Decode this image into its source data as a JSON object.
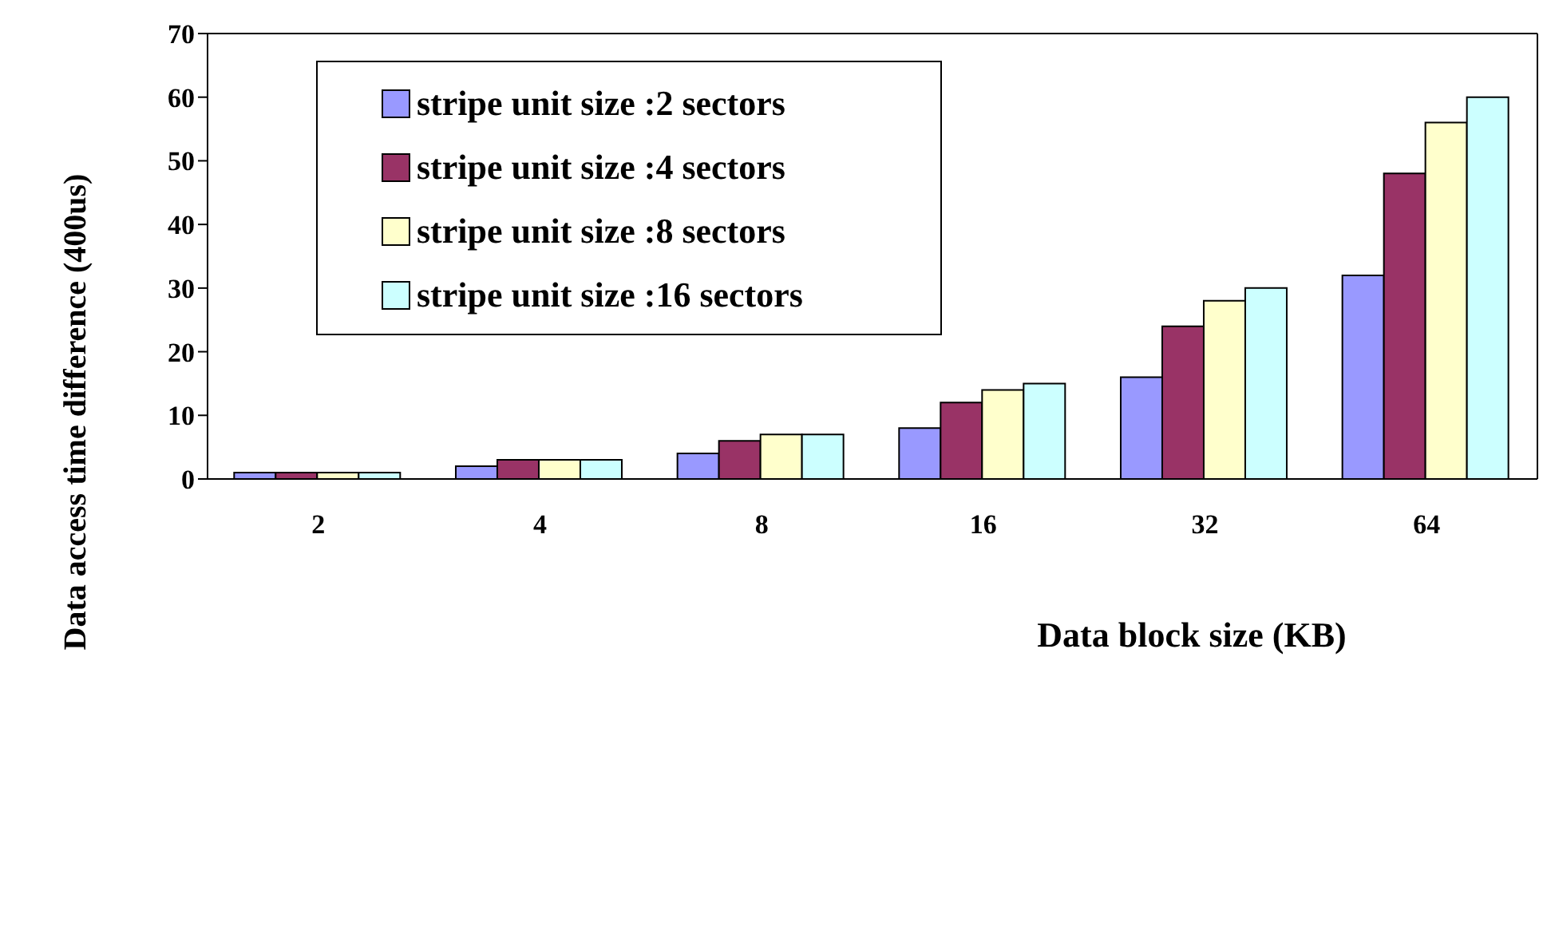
{
  "chart_data": {
    "type": "bar",
    "xlabel": "Data block size (KB)",
    "ylabel": "Data access time difference (400us)",
    "categories": [
      "2",
      "4",
      "8",
      "16",
      "32",
      "64"
    ],
    "series": [
      {
        "name": "stripe unit size :2 sectors",
        "color": "#9999ff",
        "values": [
          1,
          2,
          4,
          8,
          16,
          32
        ]
      },
      {
        "name": "stripe unit size :4 sectors",
        "color": "#993366",
        "values": [
          1,
          3,
          6,
          12,
          24,
          48
        ]
      },
      {
        "name": "stripe unit size :8 sectors",
        "color": "#ffffcc",
        "values": [
          1,
          3,
          7,
          14,
          28,
          56
        ]
      },
      {
        "name": "stripe unit size :16 sectors",
        "color": "#ccffff",
        "values": [
          1,
          3,
          7,
          15,
          30,
          60
        ]
      }
    ],
    "ylim": [
      0,
      70
    ],
    "yticks": [
      0,
      10,
      20,
      30,
      40,
      50,
      60,
      70
    ],
    "grid": false,
    "legend": "top left"
  }
}
